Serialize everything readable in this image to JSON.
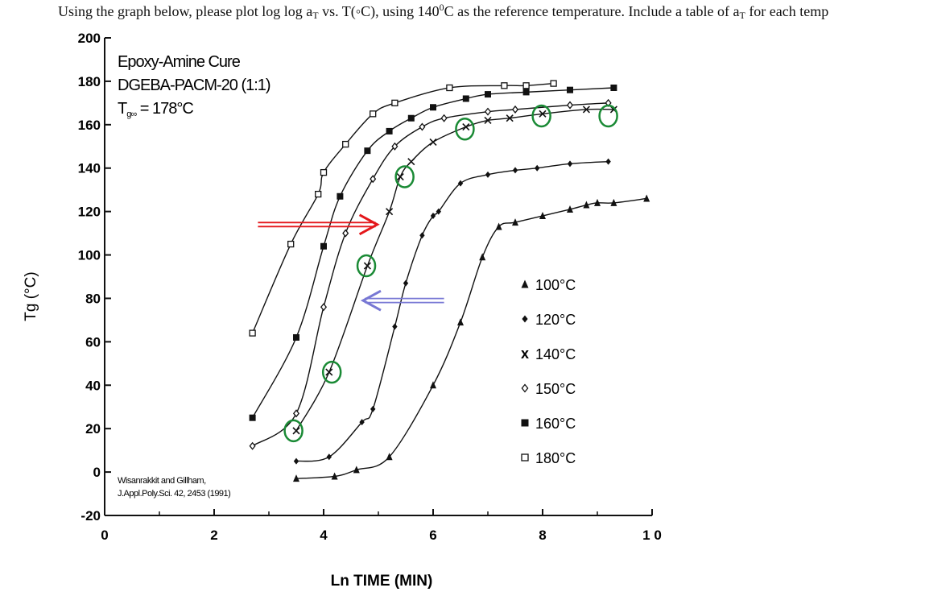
{
  "question": {
    "part1": "Using the graph below, please plot log log a",
    "part1_sub": "T",
    "part2": " vs. T(◦C), using 140",
    "part2_sup": "0",
    "part3": "C as the reference temperature. Include a table of a",
    "part3_sub": "T",
    "part4": " for each temp"
  },
  "chart_data": {
    "type": "scatter",
    "title_lines": [
      "Epoxy-Amine Cure",
      "DGEBA-PACM-20 (1:1)",
      "T = 178°C"
    ],
    "tg_label_main": "T",
    "tg_label_sub": "g∞",
    "tg_label_rest": " = 178°C",
    "citation_lines": [
      "Wisanrakkit and Gillham,",
      "J.Appl.Poly.Sci. 42, 2453 (1991)"
    ],
    "xlabel": "Ln TIME (MIN)",
    "ylabel": "Tg (°C)",
    "xlim": [
      0,
      10
    ],
    "ylim": [
      -20,
      200
    ],
    "x_ticks": [
      0,
      2,
      4,
      6,
      8,
      10
    ],
    "x_tick_labels": [
      "0",
      "2",
      "4",
      "6",
      "8",
      "1 0"
    ],
    "y_ticks": [
      -20,
      0,
      20,
      40,
      60,
      80,
      100,
      120,
      140,
      160,
      180,
      200
    ],
    "y_tick_labels": [
      "-20",
      "0",
      "20",
      "40",
      "60",
      "80",
      "100",
      "120",
      "140",
      "160",
      "180",
      "200"
    ],
    "legend_position": "right-center",
    "series": [
      {
        "name": "100°C",
        "marker": "triangle",
        "points": [
          [
            3.5,
            -3
          ],
          [
            4.2,
            -2
          ],
          [
            4.6,
            1
          ],
          [
            5.2,
            7
          ],
          [
            6.0,
            40
          ],
          [
            6.5,
            69
          ],
          [
            6.9,
            99
          ],
          [
            7.2,
            113
          ],
          [
            7.5,
            115
          ],
          [
            8.0,
            118
          ],
          [
            8.5,
            121
          ],
          [
            8.8,
            123
          ],
          [
            9.0,
            124
          ],
          [
            9.3,
            124
          ],
          [
            9.9,
            126
          ]
        ]
      },
      {
        "name": "120°C",
        "marker": "diamond",
        "points": [
          [
            3.5,
            5
          ],
          [
            4.1,
            7
          ],
          [
            4.7,
            23
          ],
          [
            4.9,
            29
          ],
          [
            5.3,
            67
          ],
          [
            5.5,
            87
          ],
          [
            5.8,
            109
          ],
          [
            6.0,
            118
          ],
          [
            6.1,
            120
          ],
          [
            6.5,
            133
          ],
          [
            7.0,
            137
          ],
          [
            7.5,
            139
          ],
          [
            7.9,
            140
          ],
          [
            8.5,
            142
          ],
          [
            9.2,
            143
          ]
        ]
      },
      {
        "name": "140°C",
        "marker": "x",
        "points": [
          [
            3.5,
            19
          ],
          [
            4.1,
            46
          ],
          [
            4.8,
            95
          ],
          [
            5.2,
            120
          ],
          [
            5.4,
            136
          ],
          [
            5.6,
            143
          ],
          [
            6.0,
            152
          ],
          [
            6.6,
            159
          ],
          [
            7.0,
            162
          ],
          [
            7.4,
            163
          ],
          [
            8.0,
            165
          ],
          [
            8.8,
            167
          ],
          [
            9.3,
            167
          ]
        ]
      },
      {
        "name": "150°C",
        "marker": "diamond-open",
        "points": [
          [
            2.7,
            12
          ],
          [
            3.5,
            27
          ],
          [
            4.0,
            76
          ],
          [
            4.4,
            110
          ],
          [
            4.9,
            135
          ],
          [
            5.3,
            150
          ],
          [
            5.8,
            159
          ],
          [
            6.2,
            163
          ],
          [
            7.0,
            166
          ],
          [
            7.5,
            167
          ],
          [
            8.5,
            169
          ],
          [
            9.2,
            170
          ]
        ]
      },
      {
        "name": "160°C",
        "marker": "square",
        "points": [
          [
            2.7,
            25
          ],
          [
            3.5,
            62
          ],
          [
            4.0,
            104
          ],
          [
            4.3,
            127
          ],
          [
            4.8,
            148
          ],
          [
            5.2,
            157
          ],
          [
            5.6,
            163
          ],
          [
            6.0,
            168
          ],
          [
            6.6,
            172
          ],
          [
            7.0,
            174
          ],
          [
            7.7,
            175
          ],
          [
            8.5,
            176
          ],
          [
            9.3,
            177
          ]
        ]
      },
      {
        "name": "180°C",
        "marker": "square-open",
        "points": [
          [
            2.7,
            64
          ],
          [
            3.4,
            105
          ],
          [
            3.9,
            128
          ],
          [
            4.0,
            138
          ],
          [
            4.4,
            151
          ],
          [
            4.9,
            165
          ],
          [
            5.3,
            170
          ],
          [
            6.3,
            177
          ],
          [
            7.3,
            178
          ],
          [
            7.7,
            178
          ],
          [
            8.2,
            179
          ]
        ]
      }
    ],
    "reference_circles": [
      [
        3.45,
        19
      ],
      [
        4.15,
        46
      ],
      [
        4.78,
        95
      ],
      [
        5.48,
        136
      ],
      [
        6.58,
        158
      ],
      [
        7.98,
        164
      ],
      [
        9.2,
        164
      ]
    ],
    "arrows": [
      {
        "color": "#e4171b",
        "direction": "right",
        "from": [
          2.8,
          114
        ],
        "to": [
          4.95,
          114
        ]
      },
      {
        "color": "#7777d4",
        "direction": "left",
        "from": [
          6.2,
          79
        ],
        "to": [
          4.75,
          79
        ]
      }
    ],
    "colors": {
      "axis": "#111111",
      "series": "#111111",
      "circle": "#1a8a35",
      "arrow_red": "#e4171b",
      "arrow_blue": "#7777d4"
    }
  }
}
